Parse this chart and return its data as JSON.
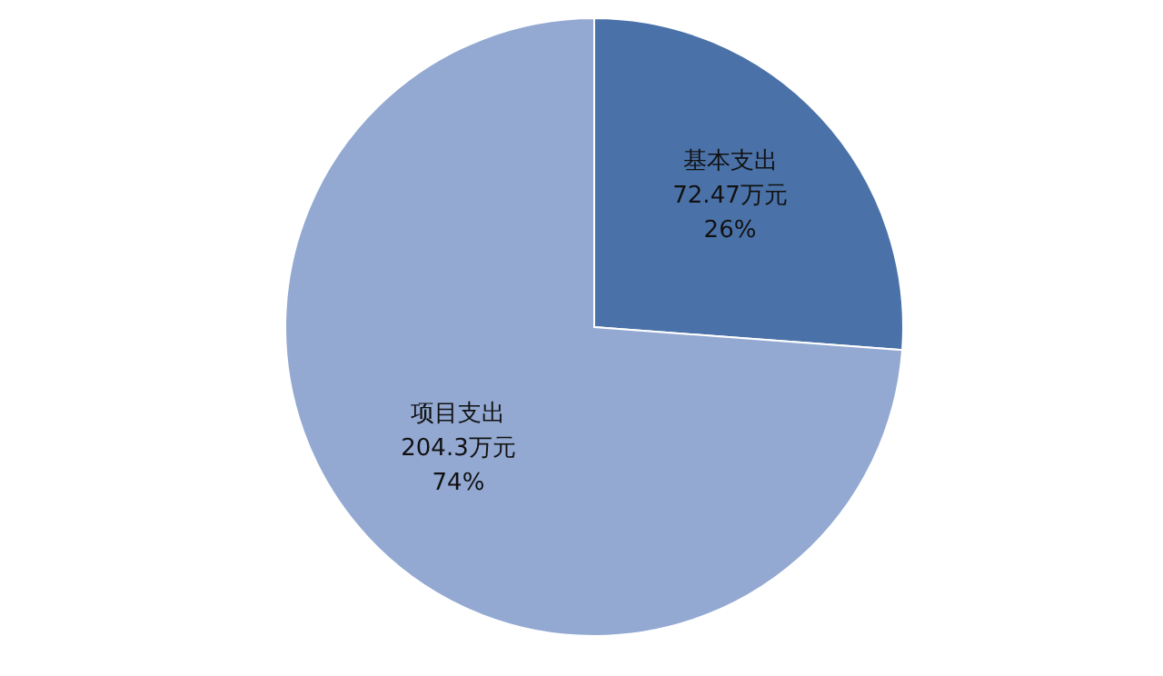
{
  "chart_data": {
    "type": "pie",
    "categories": [
      "基本支出",
      "项目支出"
    ],
    "values": [
      72.47,
      204.3
    ],
    "value_labels": [
      "72.47万元\n26%",
      "204.3万元\n74%"
    ],
    "colors": [
      "#4a72a8",
      "#93a9d2"
    ],
    "legend": false
  }
}
